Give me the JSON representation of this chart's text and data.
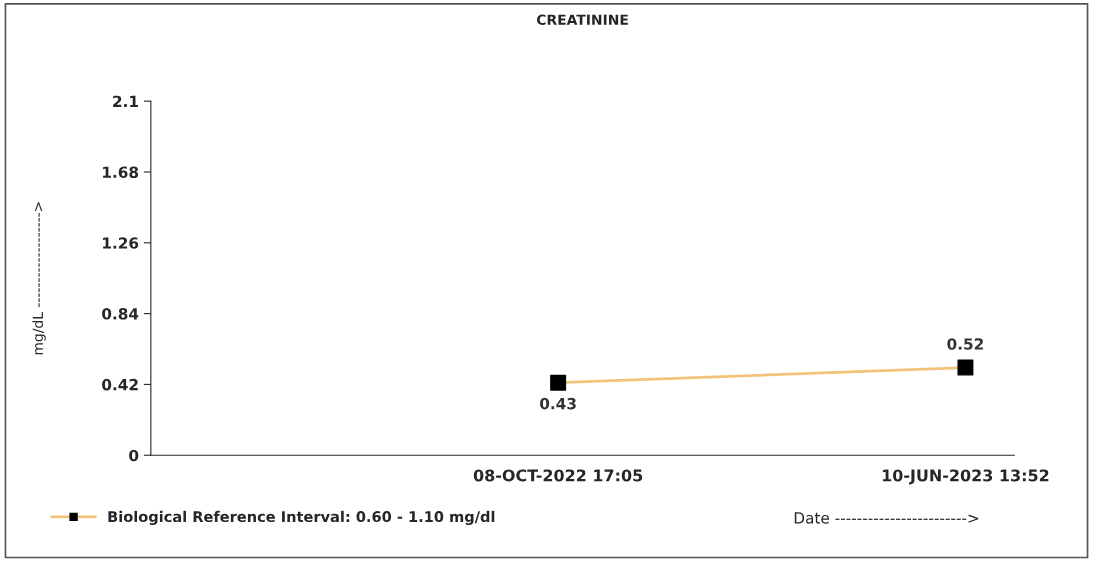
{
  "chart_data": {
    "type": "line",
    "title": "CREATININE",
    "xlabel": "Date ------------------------>",
    "ylabel": "mg/dL ------------------->",
    "categories": [
      null,
      "08-OCT-2022 17:05",
      "10-JUN-2023 13:52"
    ],
    "series": [
      {
        "name": "Biological Reference Interval: 0.60 - 1.10 mg/dl",
        "color": "#f2c27a",
        "values": [
          null,
          0.43,
          0.52
        ]
      }
    ],
    "ylim": [
      0,
      2.1
    ],
    "yticks": [
      0,
      0.42,
      0.84,
      1.26,
      1.68,
      2.1
    ],
    "marker": "square",
    "data_labels": true,
    "legend": "bottom left",
    "grid": false
  }
}
